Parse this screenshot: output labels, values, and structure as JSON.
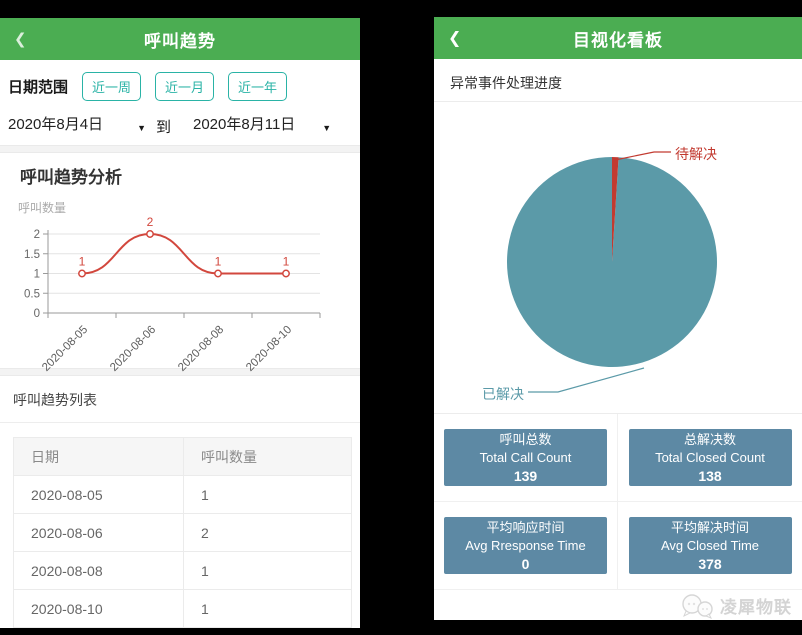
{
  "left_screen": {
    "header": {
      "title": "呼叫趋势",
      "back_icon": "chevron-left"
    },
    "date_filter": {
      "label": "日期范围",
      "quick_buttons": [
        "近一周",
        "近一月",
        "近一年"
      ],
      "start_date": "2020年8月4日",
      "to_label": "到",
      "end_date": "2020年8月11日"
    },
    "list_section": {
      "title": "呼叫趋势列表",
      "table": {
        "headers": [
          "日期",
          "呼叫数量"
        ],
        "rows": [
          [
            "2020-08-05",
            "1"
          ],
          [
            "2020-08-06",
            "2"
          ],
          [
            "2020-08-08",
            "1"
          ],
          [
            "2020-08-10",
            "1"
          ]
        ]
      }
    }
  },
  "right_screen": {
    "header": {
      "title": "目视化看板",
      "back_icon": "chevron-left"
    },
    "section_title": "异常事件处理进度",
    "stats": [
      {
        "title": "呼叫总数",
        "subtitle": "Total Call Count",
        "value": "139"
      },
      {
        "title": "总解决数",
        "subtitle": "Total Closed Count",
        "value": "138"
      },
      {
        "title": "平均响应时间",
        "subtitle": "Avg Rresponse Time",
        "value": "0"
      },
      {
        "title": "平均解决时间",
        "subtitle": "Avg Closed Time",
        "value": "378"
      }
    ],
    "watermark": "凌犀物联"
  },
  "chart_data": [
    {
      "type": "line",
      "title": "呼叫趋势分析",
      "ylabel": "呼叫数量",
      "categories": [
        "2020-08-05",
        "2020-08-06",
        "2020-08-08",
        "2020-08-10"
      ],
      "values": [
        1,
        2,
        1,
        1
      ],
      "ylim": [
        0,
        2
      ],
      "y_ticks": [
        0,
        0.5,
        1,
        1.5,
        2
      ],
      "grid": true,
      "smooth": true,
      "marker": "open-circle",
      "line_color": "#d2473d",
      "label_color": "#d2473d"
    },
    {
      "type": "pie",
      "title": "异常事件处理进度",
      "start_at": "12-oclock-clockwise",
      "labels": "callout",
      "segments": [
        {
          "label": "待解决",
          "value": 1,
          "approx_pct": 1.0,
          "color": "#c23a30"
        },
        {
          "label": "已解决",
          "value": 138,
          "approx_pct": 99.0,
          "color": "#5b9aa8"
        }
      ]
    }
  ],
  "colors": {
    "header_green": "#4bad52",
    "accent_teal": "#2ab3a6",
    "chart_red": "#d2473d",
    "pie_teal": "#5b9aa8",
    "pie_red": "#c23a30",
    "stat_card_blue": "#5d89a4",
    "background": "#000000"
  }
}
